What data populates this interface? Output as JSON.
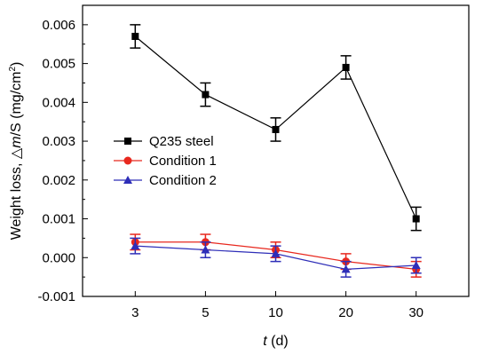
{
  "chart_data": {
    "type": "line",
    "categories": [
      "3",
      "5",
      "10",
      "20",
      "30"
    ],
    "xlabel_italic": "t",
    "xlabel_unit": " (d)",
    "ylabel_prefix": "Weight loss, ",
    "ylabel_delta": "△",
    "ylabel_italic": "m",
    "ylabel_mid": "/S (mg/cm",
    "ylabel_sup": "2",
    "ylabel_end": ")",
    "ylim": [
      -0.001,
      0.0065
    ],
    "yticks": [
      "-0.001",
      "0.000",
      "0.001",
      "0.002",
      "0.003",
      "0.004",
      "0.005",
      "0.006"
    ],
    "ytick_values": [
      -0.001,
      0.0,
      0.001,
      0.002,
      0.003,
      0.004,
      0.005,
      0.006
    ],
    "legend_position": "middle-left",
    "series": [
      {
        "name": "Q235 steel",
        "marker": "square",
        "color": "#000000",
        "values": [
          0.0057,
          0.0042,
          0.0033,
          0.0049,
          0.001
        ],
        "errors": [
          0.0003,
          0.0003,
          0.0003,
          0.0003,
          0.0003
        ]
      },
      {
        "name": "Condition 1",
        "marker": "circle",
        "color": "#e8281e",
        "values": [
          0.0004,
          0.0004,
          0.0002,
          -0.0001,
          -0.0003
        ],
        "errors": [
          0.0002,
          0.0002,
          0.0002,
          0.0002,
          0.0002
        ]
      },
      {
        "name": "Condition 2",
        "marker": "triangle",
        "color": "#2e2eb8",
        "values": [
          0.0003,
          0.0002,
          0.0001,
          -0.0003,
          -0.0002
        ],
        "errors": [
          0.0002,
          0.0002,
          0.0002,
          0.0002,
          0.0002
        ]
      }
    ]
  }
}
